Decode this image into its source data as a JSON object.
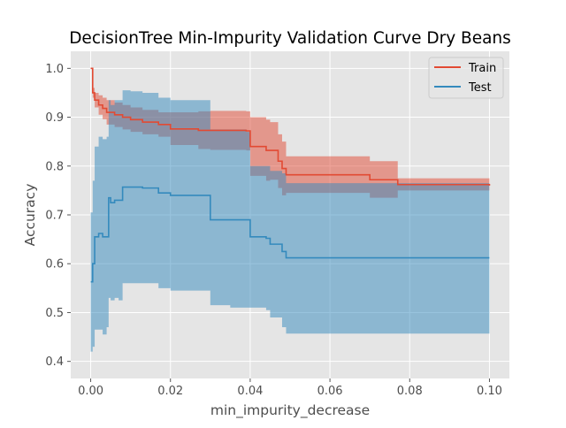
{
  "chart_data": {
    "type": "line",
    "title": "DecisionTree Min-Impurity Validation Curve Dry Beans",
    "xlabel": "min_impurity_decrease",
    "ylabel": "Accuracy",
    "xlim": [
      -0.005,
      0.105
    ],
    "ylim": [
      0.365,
      1.035
    ],
    "xticks": [
      0.0,
      0.02,
      0.04,
      0.06,
      0.08,
      0.1
    ],
    "xtick_labels": [
      "0.00",
      "0.02",
      "0.04",
      "0.06",
      "0.08",
      "0.10"
    ],
    "yticks": [
      0.4,
      0.5,
      0.6,
      0.7,
      0.8,
      0.9,
      1.0
    ],
    "ytick_labels": [
      "0.4",
      "0.5",
      "0.6",
      "0.7",
      "0.8",
      "0.9",
      "1.0"
    ],
    "grid": true,
    "style": "ggplot",
    "legend_position": "top-right",
    "series": [
      {
        "name": "Train",
        "color": "#E24A33",
        "band_color": "#E24A33",
        "x": [
          0.0,
          0.0005,
          0.001,
          0.002,
          0.003,
          0.004,
          0.006,
          0.008,
          0.01,
          0.013,
          0.017,
          0.02,
          0.027,
          0.03,
          0.035,
          0.039,
          0.04,
          0.044,
          0.045,
          0.047,
          0.048,
          0.049,
          0.055,
          0.06,
          0.065,
          0.07,
          0.075,
          0.077,
          0.085,
          0.09,
          0.1
        ],
        "values": [
          1.0,
          0.95,
          0.935,
          0.925,
          0.918,
          0.91,
          0.905,
          0.9,
          0.895,
          0.89,
          0.885,
          0.876,
          0.873,
          0.873,
          0.873,
          0.872,
          0.84,
          0.832,
          0.832,
          0.81,
          0.795,
          0.782,
          0.782,
          0.782,
          0.782,
          0.772,
          0.772,
          0.762,
          0.762,
          0.762,
          0.76
        ],
        "upper": [
          1.0,
          0.96,
          0.95,
          0.945,
          0.94,
          0.935,
          0.93,
          0.925,
          0.92,
          0.915,
          0.91,
          0.91,
          0.912,
          0.913,
          0.913,
          0.912,
          0.9,
          0.895,
          0.89,
          0.865,
          0.85,
          0.82,
          0.82,
          0.82,
          0.82,
          0.81,
          0.81,
          0.775,
          0.775,
          0.775,
          0.775
        ],
        "lower": [
          1.0,
          0.94,
          0.92,
          0.905,
          0.896,
          0.885,
          0.88,
          0.875,
          0.87,
          0.865,
          0.86,
          0.843,
          0.835,
          0.833,
          0.833,
          0.832,
          0.78,
          0.77,
          0.772,
          0.755,
          0.74,
          0.745,
          0.745,
          0.745,
          0.745,
          0.735,
          0.735,
          0.75,
          0.75,
          0.75,
          0.748
        ]
      },
      {
        "name": "Test",
        "color": "#348ABD",
        "band_color": "#348ABD",
        "x": [
          0.0,
          0.0005,
          0.001,
          0.002,
          0.003,
          0.004,
          0.0045,
          0.005,
          0.006,
          0.007,
          0.008,
          0.01,
          0.013,
          0.017,
          0.02,
          0.025,
          0.027,
          0.03,
          0.035,
          0.039,
          0.04,
          0.044,
          0.045,
          0.047,
          0.048,
          0.049,
          0.055,
          0.06,
          0.07,
          0.08,
          0.09,
          0.1
        ],
        "values": [
          0.563,
          0.6,
          0.655,
          0.662,
          0.655,
          0.655,
          0.735,
          0.725,
          0.73,
          0.73,
          0.757,
          0.757,
          0.755,
          0.745,
          0.74,
          0.74,
          0.74,
          0.69,
          0.69,
          0.69,
          0.655,
          0.652,
          0.64,
          0.64,
          0.625,
          0.612,
          0.612,
          0.612,
          0.612,
          0.612,
          0.612,
          0.612
        ],
        "upper": [
          0.705,
          0.77,
          0.84,
          0.86,
          0.855,
          0.86,
          0.935,
          0.925,
          0.935,
          0.935,
          0.955,
          0.953,
          0.95,
          0.94,
          0.935,
          0.935,
          0.935,
          0.875,
          0.875,
          0.87,
          0.8,
          0.8,
          0.79,
          0.79,
          0.785,
          0.765,
          0.765,
          0.765,
          0.765,
          0.765,
          0.765,
          0.765
        ],
        "lower": [
          0.42,
          0.43,
          0.465,
          0.465,
          0.455,
          0.47,
          0.53,
          0.525,
          0.53,
          0.525,
          0.56,
          0.56,
          0.56,
          0.55,
          0.545,
          0.545,
          0.545,
          0.515,
          0.51,
          0.51,
          0.51,
          0.505,
          0.49,
          0.49,
          0.47,
          0.457,
          0.457,
          0.457,
          0.457,
          0.457,
          0.457,
          0.457
        ]
      }
    ]
  }
}
